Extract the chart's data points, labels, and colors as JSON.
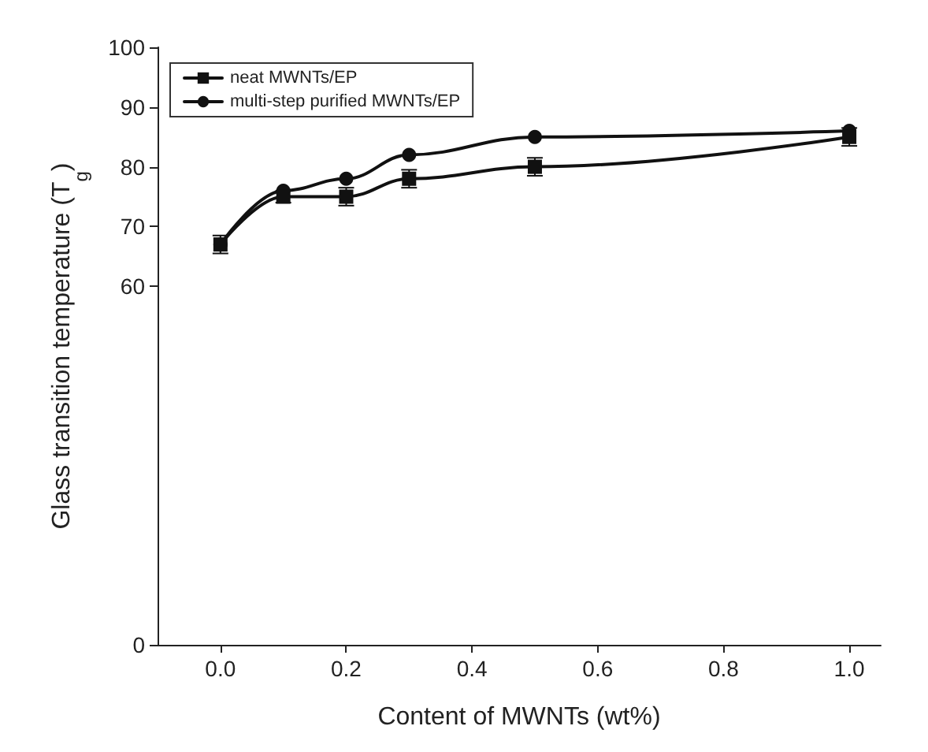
{
  "chart_data": {
    "type": "line",
    "xlabel": "Content of MWNTs (wt%)",
    "ylabel": "Glass transition temperature (T$_{g}$)",
    "x": [
      0,
      0.1,
      0.2,
      0.3,
      0.5,
      1.0
    ],
    "series": [
      {
        "name": "neat MWNTs/EP",
        "color": "#111111",
        "marker": "square",
        "values": [
          67,
          75,
          75,
          78,
          80,
          85
        ],
        "errors": [
          1.5,
          1,
          1.5,
          1.5,
          1.5,
          1.5
        ]
      },
      {
        "name": "multi-step purified MWNTs/EP",
        "color": "#111111",
        "marker": "circle",
        "values": [
          67,
          76,
          78,
          82,
          85,
          86
        ]
      }
    ],
    "xlim": [
      -0.1,
      1.05
    ],
    "xticks": [
      {
        "value": 0,
        "label": "0.0"
      },
      {
        "value": 0.2,
        "label": "0.2"
      },
      {
        "value": 0.4,
        "label": "0.4"
      },
      {
        "value": 0.6,
        "label": "0.6"
      },
      {
        "value": 0.8,
        "label": "0.8"
      },
      {
        "value": 1,
        "label": "1.0"
      }
    ],
    "ylim": [
      0,
      100
    ],
    "yticks": [
      0,
      60,
      70,
      80,
      90,
      100
    ],
    "legend": "top left",
    "grid": false,
    "line_style": "solid"
  }
}
